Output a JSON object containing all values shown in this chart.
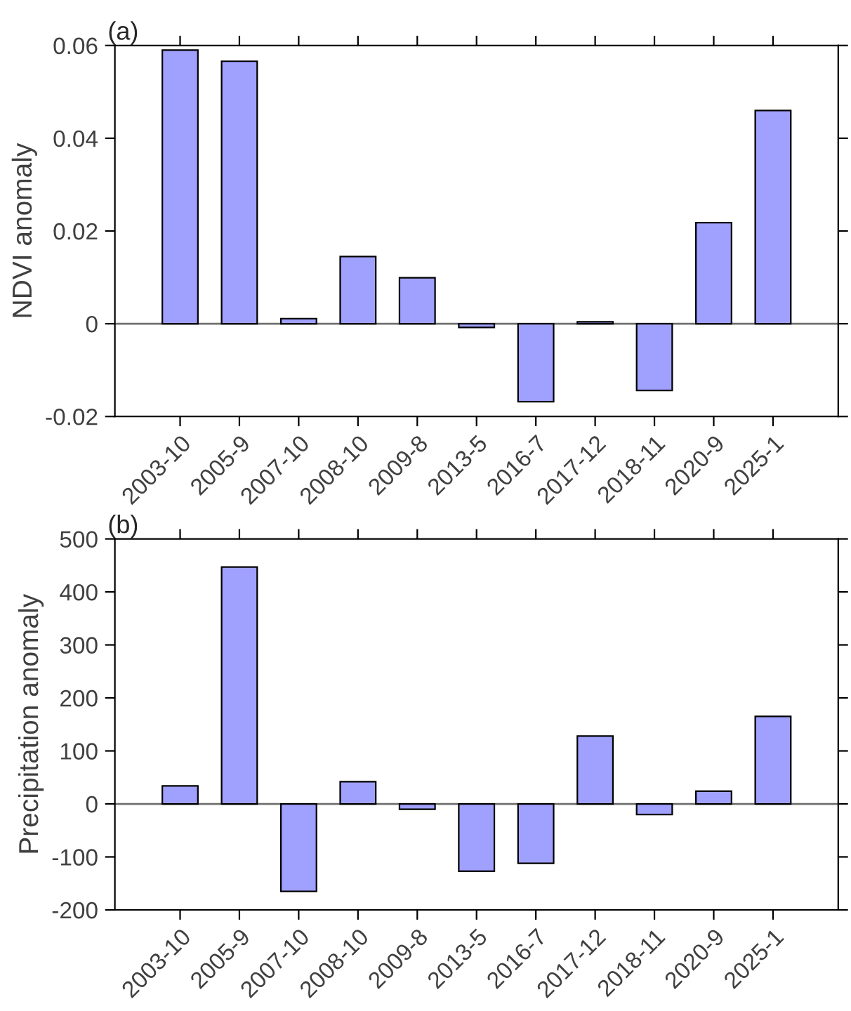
{
  "chart_data": [
    {
      "type": "bar",
      "title": "(a)",
      "ylabel": "NDVI anomaly",
      "categories": [
        "2003-10",
        "2005-9",
        "2007-10",
        "2008-10",
        "2009-8",
        "2013-5",
        "2016-7",
        "2017-12",
        "2018-11",
        "2020-9",
        "2025-1"
      ],
      "values": [
        0.059,
        0.0566,
        0.0011,
        0.0145,
        0.0099,
        -0.0008,
        -0.0168,
        0.0004,
        -0.0144,
        0.0218,
        0.046
      ],
      "color": "#a0a0ff",
      "ylim": [
        -0.02,
        0.06
      ],
      "yticks": [
        {
          "value": -0.02,
          "label": "-0.02"
        },
        0,
        {
          "value": 0.02,
          "label": "0.02"
        },
        {
          "value": 0.04,
          "label": "0.04"
        },
        {
          "value": 0.06,
          "label": "0.06"
        }
      ],
      "ref_lines": [
        {
          "axis": "y",
          "value": 0,
          "color": "#707070"
        }
      ],
      "grid": false,
      "legend": false
    },
    {
      "type": "bar",
      "title": "(b)",
      "ylabel": "Precipitation anomaly",
      "categories": [
        "2003-10",
        "2005-9",
        "2007-10",
        "2008-10",
        "2009-8",
        "2013-5",
        "2016-7",
        "2017-12",
        "2018-11",
        "2020-9",
        "2025-1"
      ],
      "values": [
        34,
        447,
        -165,
        42,
        -10,
        -127,
        -112,
        128,
        -20,
        24,
        165
      ],
      "color": "#a0a0ff",
      "ylim": [
        -200,
        500
      ],
      "yticks": [
        {
          "value": -200,
          "label": "-200"
        },
        {
          "value": -100,
          "label": "-100"
        },
        0,
        100,
        200,
        300,
        400,
        500
      ],
      "ref_lines": [
        {
          "axis": "y",
          "value": 0,
          "color": "#707070"
        }
      ],
      "grid": false,
      "legend": false
    }
  ]
}
